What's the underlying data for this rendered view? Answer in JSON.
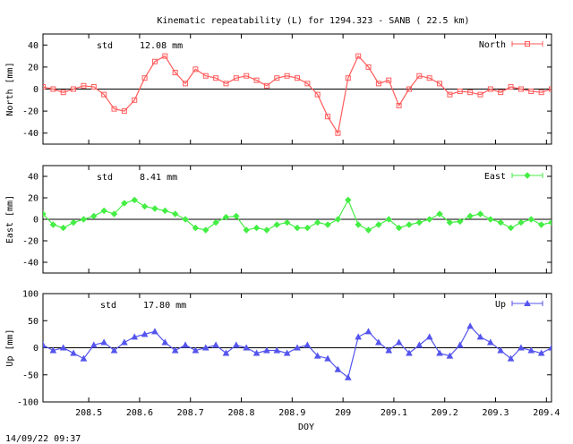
{
  "page": {
    "title": "Kinematic repeatability (L) for 1294.323 - SANB  ( 22.5 km)",
    "timestamp": "14/09/22 09:37"
  },
  "chart_data": [
    {
      "type": "line",
      "ylabel": "North [mm]",
      "ylim": [
        -50,
        50
      ],
      "yticks": [
        40,
        20,
        0,
        -20,
        -40
      ],
      "std_label": "std",
      "std_value": "12.08 mm",
      "series": [
        {
          "name": "North",
          "color": "#ff5b5b",
          "marker": "square"
        }
      ],
      "x": [
        208.41,
        208.43,
        208.45,
        208.47,
        208.49,
        208.51,
        208.53,
        208.55,
        208.57,
        208.59,
        208.61,
        208.63,
        208.65,
        208.67,
        208.69,
        208.71,
        208.73,
        208.75,
        208.77,
        208.79,
        208.81,
        208.83,
        208.85,
        208.87,
        208.89,
        208.91,
        208.93,
        208.95,
        208.97,
        208.99,
        209.01,
        209.03,
        209.05,
        209.07,
        209.09,
        209.11,
        209.13,
        209.15,
        209.17,
        209.19,
        209.21,
        209.23,
        209.25,
        209.27,
        209.29,
        209.31,
        209.33,
        209.35,
        209.37,
        209.39,
        209.41
      ],
      "values": [
        2,
        0,
        -3,
        0,
        3,
        2,
        -5,
        -18,
        -20,
        -10,
        10,
        25,
        30,
        15,
        5,
        18,
        12,
        10,
        5,
        10,
        12,
        8,
        3,
        10,
        12,
        10,
        5,
        -5,
        -25,
        -40,
        10,
        30,
        20,
        5,
        8,
        -15,
        0,
        12,
        10,
        5,
        -5,
        -2,
        -3,
        -5,
        0,
        -3,
        2,
        0,
        -2,
        -3,
        0
      ]
    },
    {
      "type": "line",
      "ylabel": "East [mm]",
      "ylim": [
        -50,
        50
      ],
      "yticks": [
        40,
        20,
        0,
        -20,
        -40
      ],
      "std_label": "std",
      "std_value": "8.41 mm",
      "series": [
        {
          "name": "East",
          "color": "#44ee44",
          "marker": "diamond"
        }
      ],
      "x": [
        208.41,
        208.43,
        208.45,
        208.47,
        208.49,
        208.51,
        208.53,
        208.55,
        208.57,
        208.59,
        208.61,
        208.63,
        208.65,
        208.67,
        208.69,
        208.71,
        208.73,
        208.75,
        208.77,
        208.79,
        208.81,
        208.83,
        208.85,
        208.87,
        208.89,
        208.91,
        208.93,
        208.95,
        208.97,
        208.99,
        209.01,
        209.03,
        209.05,
        209.07,
        209.09,
        209.11,
        209.13,
        209.15,
        209.17,
        209.19,
        209.21,
        209.23,
        209.25,
        209.27,
        209.29,
        209.31,
        209.33,
        209.35,
        209.37,
        209.39,
        209.41
      ],
      "values": [
        5,
        -5,
        -8,
        -3,
        0,
        3,
        8,
        5,
        15,
        18,
        12,
        10,
        8,
        5,
        0,
        -8,
        -10,
        -3,
        2,
        3,
        -10,
        -8,
        -10,
        -5,
        -3,
        -8,
        -8,
        -3,
        -5,
        0,
        18,
        -5,
        -10,
        -5,
        0,
        -8,
        -5,
        -3,
        0,
        5,
        -3,
        -2,
        3,
        5,
        0,
        -3,
        -8,
        -3,
        0,
        -5,
        -3
      ]
    },
    {
      "type": "line",
      "ylabel": "Up [mm]",
      "xlabel": "DOY",
      "ylim": [
        -100,
        100
      ],
      "yticks": [
        100,
        50,
        0,
        -50,
        -100
      ],
      "xlim": [
        208.41,
        209.41
      ],
      "xticks": [
        "208.5",
        "208.6",
        "208.7",
        "208.8",
        "208.9",
        "209",
        "209.1",
        "209.2",
        "209.3",
        "209.4"
      ],
      "std_label": "std",
      "std_value": "17.80 mm",
      "series": [
        {
          "name": "Up",
          "color": "#5555ee",
          "marker": "triangle"
        }
      ],
      "x": [
        208.41,
        208.43,
        208.45,
        208.47,
        208.49,
        208.51,
        208.53,
        208.55,
        208.57,
        208.59,
        208.61,
        208.63,
        208.65,
        208.67,
        208.69,
        208.71,
        208.73,
        208.75,
        208.77,
        208.79,
        208.81,
        208.83,
        208.85,
        208.87,
        208.89,
        208.91,
        208.93,
        208.95,
        208.97,
        208.99,
        209.01,
        209.03,
        209.05,
        209.07,
        209.09,
        209.11,
        209.13,
        209.15,
        209.17,
        209.19,
        209.21,
        209.23,
        209.25,
        209.27,
        209.29,
        209.31,
        209.33,
        209.35,
        209.37,
        209.39,
        209.41
      ],
      "values": [
        5,
        -5,
        0,
        -10,
        -20,
        5,
        10,
        -5,
        10,
        20,
        25,
        30,
        10,
        -5,
        5,
        -5,
        0,
        5,
        -10,
        5,
        0,
        -10,
        -5,
        -5,
        -10,
        0,
        5,
        -15,
        -20,
        -40,
        -55,
        20,
        30,
        10,
        -5,
        10,
        -10,
        5,
        20,
        -10,
        -15,
        5,
        40,
        20,
        10,
        -5,
        -20,
        0,
        -5,
        -10,
        0
      ]
    }
  ]
}
